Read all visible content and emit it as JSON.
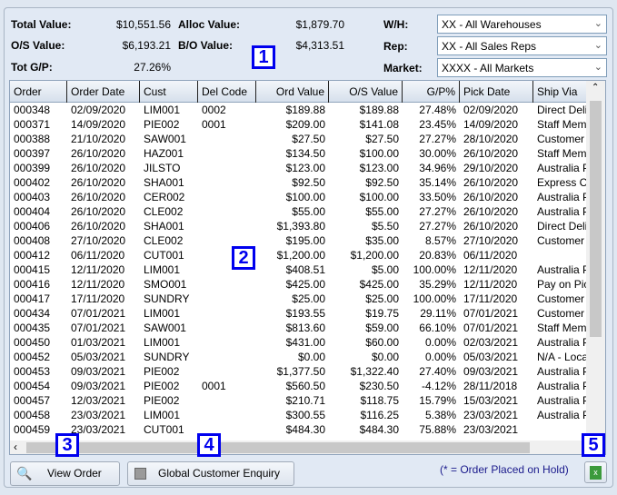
{
  "summary": {
    "total_value_label": "Total Value:",
    "total_value": "$10,551.56",
    "alloc_value_label": "Alloc Value:",
    "alloc_value": "$1,879.70",
    "os_value_label": "O/S Value:",
    "os_value": "$6,193.21",
    "bo_value_label": "B/O Value:",
    "bo_value": "$4,313.51",
    "tot_gp_label": "Tot G/P:",
    "tot_gp": "27.26%"
  },
  "filters": {
    "wh_label": "W/H:",
    "wh_value": "XX - All Warehouses",
    "rep_label": "Rep:",
    "rep_value": "XX - All Sales Reps",
    "market_label": "Market:",
    "market_value": "XXXX - All Markets"
  },
  "table": {
    "columns": [
      "Order",
      "Order Date",
      "Cust",
      "Del Code",
      "Ord Value",
      "O/S Value",
      "G/P%",
      "Pick Date",
      "Ship Via"
    ],
    "rows": [
      [
        "000348",
        "02/09/2020",
        "LIM001",
        "0002",
        "$189.88",
        "$189.88",
        "27.48%",
        "02/09/2020",
        "Direct Delivery"
      ],
      [
        "000371",
        "14/09/2020",
        "PIE002",
        "0001",
        "$209.00",
        "$141.08",
        "23.45%",
        "14/09/2020",
        "Staff Member"
      ],
      [
        "000388",
        "21/10/2020",
        "SAW001",
        "",
        "$27.50",
        "$27.50",
        "27.27%",
        "28/10/2020",
        "Customer Pickup"
      ],
      [
        "000397",
        "26/10/2020",
        "HAZ001",
        "",
        "$134.50",
        "$100.00",
        "30.00%",
        "26/10/2020",
        "Staff Member"
      ],
      [
        "000399",
        "26/10/2020",
        "JILSTO",
        "",
        "$123.00",
        "$123.00",
        "34.96%",
        "29/10/2020",
        "Australia Post"
      ],
      [
        "000402",
        "26/10/2020",
        "SHA001",
        "",
        "$92.50",
        "$92.50",
        "35.14%",
        "26/10/2020",
        "Express Courier"
      ],
      [
        "000403",
        "26/10/2020",
        "CER002",
        "",
        "$100.00",
        "$100.00",
        "33.50%",
        "26/10/2020",
        "Australia Post"
      ],
      [
        "000404",
        "26/10/2020",
        "CLE002",
        "",
        "$55.00",
        "$55.00",
        "27.27%",
        "26/10/2020",
        "Australia Post"
      ],
      [
        "000406",
        "26/10/2020",
        "SHA001",
        "",
        "$1,393.80",
        "$5.50",
        "27.27%",
        "26/10/2020",
        "Direct Delivery"
      ],
      [
        "000408",
        "27/10/2020",
        "CLE002",
        "",
        "$195.00",
        "$35.00",
        "8.57%",
        "27/10/2020",
        "Customer Pickup"
      ],
      [
        "000412",
        "06/11/2020",
        "CUT001",
        "",
        "$1,200.00",
        "$1,200.00",
        "20.83%",
        "06/11/2020",
        ""
      ],
      [
        "000415",
        "12/11/2020",
        "LIM001",
        "",
        "$408.51",
        "$5.00",
        "100.00%",
        "12/11/2020",
        "Australia Post"
      ],
      [
        "000416",
        "12/11/2020",
        "SMO001",
        "",
        "$425.00",
        "$425.00",
        "35.29%",
        "12/11/2020",
        "Pay on Pickup"
      ],
      [
        "000417",
        "17/11/2020",
        "SUNDRY",
        "",
        "$25.00",
        "$25.00",
        "100.00%",
        "17/11/2020",
        "Customer Pickup"
      ],
      [
        "000434",
        "07/01/2021",
        "LIM001",
        "",
        "$193.55",
        "$19.75",
        "29.11%",
        "07/01/2021",
        "Customer Pickup"
      ],
      [
        "000435",
        "07/01/2021",
        "SAW001",
        "",
        "$813.60",
        "$59.00",
        "66.10%",
        "07/01/2021",
        "Staff Member"
      ],
      [
        "000450",
        "01/03/2021",
        "LIM001",
        "",
        "$431.00",
        "$60.00",
        "0.00%",
        "02/03/2021",
        "Australia Post"
      ],
      [
        "000452",
        "05/03/2021",
        "SUNDRY",
        "",
        "$0.00",
        "$0.00",
        "0.00%",
        "05/03/2021",
        "N/A - Local"
      ],
      [
        "000453",
        "09/03/2021",
        "PIE002",
        "",
        "$1,377.50",
        "$1,322.40",
        "27.40%",
        "09/03/2021",
        "Australia Post"
      ],
      [
        "000454",
        "09/03/2021",
        "PIE002",
        "0001",
        "$560.50",
        "$230.50",
        "-4.12%",
        "28/11/2018",
        "Australia Post"
      ],
      [
        "000457",
        "12/03/2021",
        "PIE002",
        "",
        "$210.71",
        "$118.75",
        "15.79%",
        "15/03/2021",
        "Australia Post"
      ],
      [
        "000458",
        "23/03/2021",
        "LIM001",
        "",
        "$300.55",
        "$116.25",
        "5.38%",
        "23/03/2021",
        "Australia Post"
      ],
      [
        "000459",
        "23/03/2021",
        "CUT001",
        "",
        "$484.30",
        "$484.30",
        "75.88%",
        "23/03/2021",
        ""
      ]
    ]
  },
  "footer": {
    "view_order_label": "View Order",
    "global_enquiry_label": "Global Customer Enquiry",
    "hold_note": "(* = Order Placed on Hold)",
    "export_icon": "excel-icon"
  },
  "callouts": [
    "1",
    "2",
    "3",
    "4",
    "5"
  ],
  "colors": {
    "callout": "#0000ee",
    "panel": "#e1e9f4",
    "hold_note": "#1a1a8c"
  }
}
